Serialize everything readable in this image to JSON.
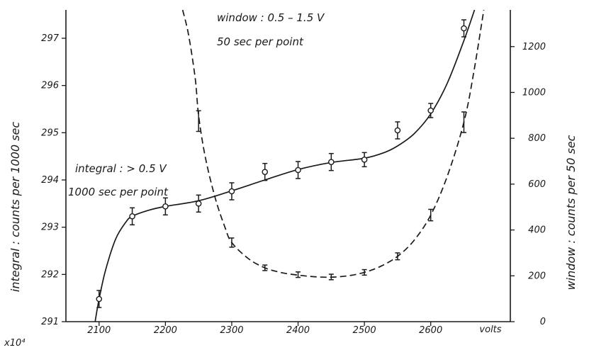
{
  "chart_data": {
    "type": "line",
    "title": "",
    "x": {
      "label": "volts",
      "range": [
        2050,
        2720
      ],
      "ticks": [
        2100,
        2200,
        2300,
        2400,
        2500,
        2600
      ],
      "tick_labels": [
        "2100",
        "2200",
        "2300",
        "2400",
        "2500",
        "2600"
      ]
    },
    "y_left": {
      "label": "integral : counts per 1000 sec",
      "multiplier_label": "x10⁴",
      "range": [
        291,
        297.6
      ],
      "ticks": [
        291,
        292,
        293,
        294,
        295,
        296,
        297
      ],
      "tick_labels": [
        "291",
        "292",
        "293",
        "294",
        "295",
        "296",
        "297"
      ]
    },
    "y_right": {
      "label": "window : counts per 50 sec",
      "range": [
        0,
        1360
      ],
      "ticks": [
        0,
        200,
        400,
        600,
        800,
        1000,
        1200
      ],
      "tick_labels": [
        "0",
        "200",
        "400",
        "600",
        "800",
        "1000",
        "1200"
      ]
    },
    "series": [
      {
        "name": "integral : > 0.5 V",
        "sub_label": "1000 sec per point",
        "axis": "left",
        "line_style": "solid",
        "marker": "open-circle",
        "points": [
          {
            "x": 2100,
            "y": 291.48,
            "err": 0.18
          },
          {
            "x": 2150,
            "y": 293.23,
            "err": 0.18
          },
          {
            "x": 2200,
            "y": 293.44,
            "err": 0.18
          },
          {
            "x": 2250,
            "y": 293.5,
            "err": 0.18
          },
          {
            "x": 2300,
            "y": 293.76,
            "err": 0.18
          },
          {
            "x": 2350,
            "y": 294.17,
            "err": 0.18
          },
          {
            "x": 2400,
            "y": 294.21,
            "err": 0.18
          },
          {
            "x": 2450,
            "y": 294.38,
            "err": 0.18
          },
          {
            "x": 2500,
            "y": 294.43,
            "err": 0.15
          },
          {
            "x": 2550,
            "y": 295.05,
            "err": 0.18
          },
          {
            "x": 2600,
            "y": 295.47,
            "err": 0.15
          },
          {
            "x": 2650,
            "y": 297.21,
            "err": 0.18
          }
        ],
        "curve": [
          [
            2094,
            291.0
          ],
          [
            2100,
            291.48
          ],
          [
            2110,
            292.1
          ],
          [
            2125,
            292.75
          ],
          [
            2140,
            293.1
          ],
          [
            2150,
            293.23
          ],
          [
            2175,
            293.36
          ],
          [
            2200,
            293.44
          ],
          [
            2250,
            293.56
          ],
          [
            2300,
            293.77
          ],
          [
            2350,
            294.0
          ],
          [
            2400,
            294.22
          ],
          [
            2450,
            294.37
          ],
          [
            2500,
            294.46
          ],
          [
            2530,
            294.58
          ],
          [
            2550,
            294.72
          ],
          [
            2575,
            294.98
          ],
          [
            2600,
            295.4
          ],
          [
            2625,
            296.05
          ],
          [
            2650,
            296.95
          ],
          [
            2666,
            297.6
          ]
        ]
      },
      {
        "name": "window : 0.5 - 1.5 V",
        "sub_label": "50 sec per point",
        "axis": "right",
        "line_style": "dashed",
        "marker": "error-bar",
        "points": [
          {
            "x": 2250,
            "y": 875,
            "err": 45
          },
          {
            "x": 2300,
            "y": 345,
            "err": 20
          },
          {
            "x": 2350,
            "y": 235,
            "err": 12
          },
          {
            "x": 2400,
            "y": 205,
            "err": 12
          },
          {
            "x": 2450,
            "y": 195,
            "err": 12
          },
          {
            "x": 2500,
            "y": 215,
            "err": 12
          },
          {
            "x": 2550,
            "y": 285,
            "err": 15
          },
          {
            "x": 2600,
            "y": 465,
            "err": 25
          },
          {
            "x": 2650,
            "y": 870,
            "err": 45
          }
        ],
        "curve": [
          [
            2226,
            1360
          ],
          [
            2235,
            1250
          ],
          [
            2245,
            1060
          ],
          [
            2250,
            900
          ],
          [
            2260,
            720
          ],
          [
            2275,
            540
          ],
          [
            2290,
            410
          ],
          [
            2300,
            345
          ],
          [
            2325,
            275
          ],
          [
            2350,
            235
          ],
          [
            2375,
            214
          ],
          [
            2400,
            203
          ],
          [
            2425,
            196
          ],
          [
            2450,
            194
          ],
          [
            2475,
            200
          ],
          [
            2500,
            215
          ],
          [
            2525,
            242
          ],
          [
            2550,
            285
          ],
          [
            2575,
            355
          ],
          [
            2600,
            465
          ],
          [
            2625,
            635
          ],
          [
            2650,
            870
          ],
          [
            2665,
            1090
          ],
          [
            2680,
            1360
          ]
        ]
      }
    ],
    "annotations": [
      {
        "text": "window : 0.5 – 1.5 V",
        "anchor": "top-center"
      },
      {
        "text": "50 sec per point",
        "anchor": "top-center"
      },
      {
        "text": "integral : > 0.5 V",
        "anchor": "left-middle"
      },
      {
        "text": "1000 sec per point",
        "anchor": "left-middle"
      }
    ]
  }
}
